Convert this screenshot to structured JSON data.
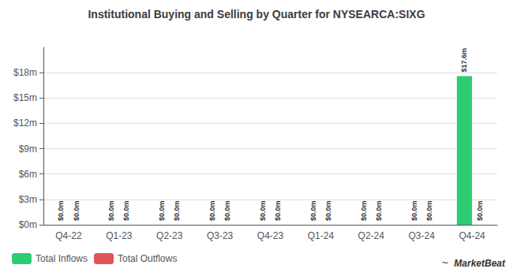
{
  "chart_data": {
    "type": "bar",
    "title": "Institutional Buying and Selling by Quarter for NYSEARCA:SIXG",
    "categories": [
      "Q4-22",
      "Q1-23",
      "Q2-23",
      "Q3-23",
      "Q4-23",
      "Q1-24",
      "Q2-24",
      "Q3-24",
      "Q4-24"
    ],
    "series": [
      {
        "name": "Total Inflows",
        "color": "#2ecc71",
        "values": [
          0.0,
          0.0,
          0.0,
          0.0,
          0.0,
          0.0,
          0.0,
          0.0,
          17.6
        ],
        "value_labels": [
          "$0.0m",
          "$0.0m",
          "$0.0m",
          "$0.0m",
          "$0.0m",
          "$0.0m",
          "$0.0m",
          "$0.0m",
          "$17.6m"
        ]
      },
      {
        "name": "Total Outflows",
        "color": "#e05555",
        "values": [
          0.0,
          0.0,
          0.0,
          0.0,
          0.0,
          0.0,
          0.0,
          0.0,
          0.0
        ],
        "value_labels": [
          "$0.0m",
          "$0.0m",
          "$0.0m",
          "$0.0m",
          "$0.0m",
          "$0.0m",
          "$0.0m",
          "$0.0m",
          "$0.0m"
        ]
      }
    ],
    "ylim": [
      0,
      21
    ],
    "yticks": [
      {
        "value": 0,
        "label": "$0m"
      },
      {
        "value": 3,
        "label": "$3m"
      },
      {
        "value": 6,
        "label": "$6m"
      },
      {
        "value": 9,
        "label": "$9m"
      },
      {
        "value": 12,
        "label": "$12m"
      },
      {
        "value": 15,
        "label": "$15m"
      },
      {
        "value": 18,
        "label": "$18m"
      }
    ],
    "grid": true,
    "legend": "lower left",
    "data_labels": true,
    "annotations": [
      "~",
      "MarketBeat"
    ]
  }
}
